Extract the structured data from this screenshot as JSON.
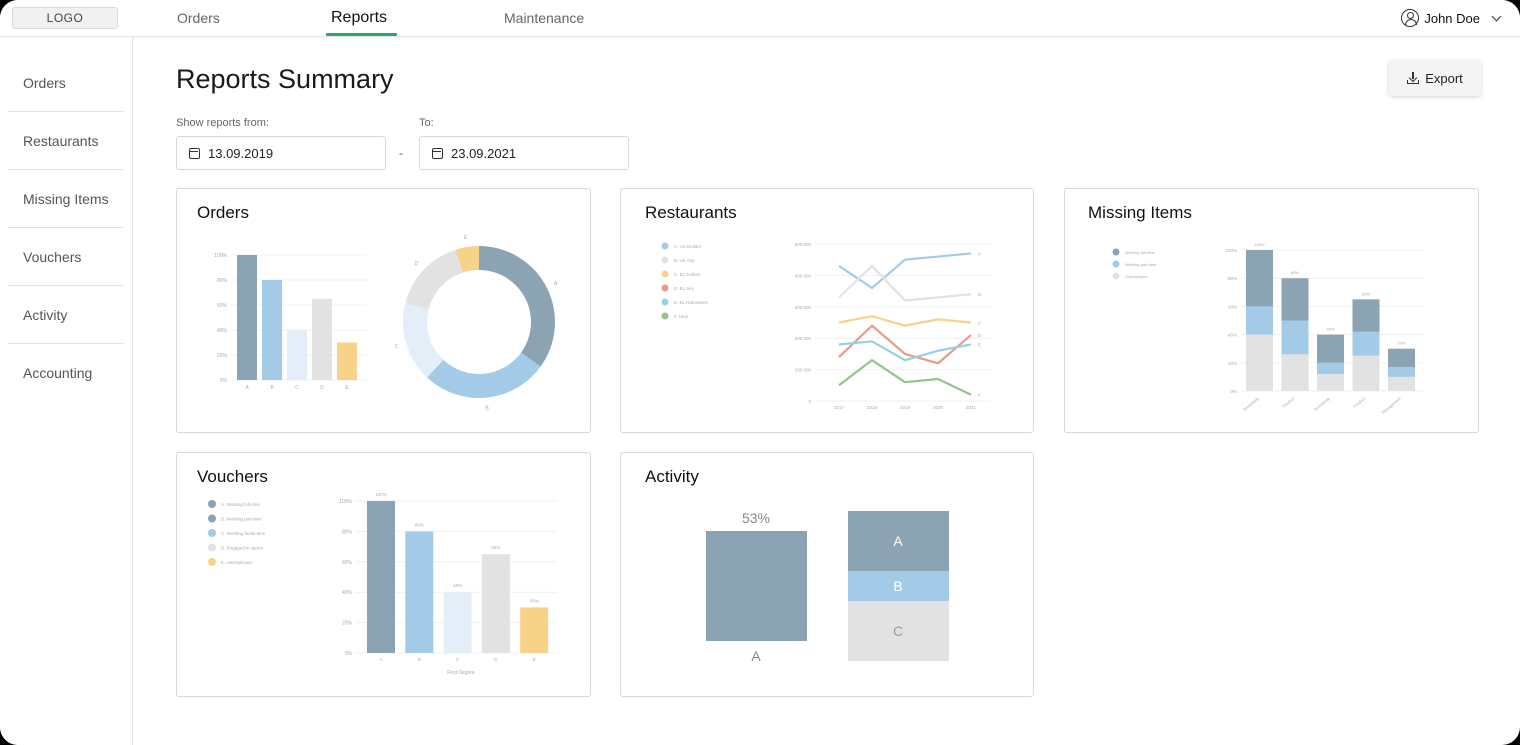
{
  "header": {
    "logo": "LOGO",
    "nav": [
      {
        "label": "Orders"
      },
      {
        "label": "Reports"
      },
      {
        "label": "Maintenance"
      }
    ],
    "user_name": "John Doe"
  },
  "sidebar": {
    "items": [
      {
        "label": "Orders"
      },
      {
        "label": "Restaurants"
      },
      {
        "label": "Missing Items"
      },
      {
        "label": "Vouchers"
      },
      {
        "label": "Activity"
      },
      {
        "label": "Accounting"
      }
    ]
  },
  "main": {
    "title": "Reports Summary",
    "export_label": "Export",
    "from_label": "Show reports from:",
    "from_value": "13.09.2019",
    "to_label": "To:",
    "to_value": "23.09.2021",
    "separator": "-"
  },
  "colors": {
    "accent": "#2aa56b",
    "slate": "#8ca3b3",
    "blue": "#a3cbe8",
    "pale_blue": "#e3eef8",
    "gray": "#e2e2e2",
    "yellow": "#f7d38a",
    "red": "#ea9a89",
    "cyan": "#94d2e3",
    "green": "#93c48a"
  },
  "cards": {
    "orders": {
      "title": "Orders"
    },
    "restaurants": {
      "title": "Restaurants"
    },
    "missing": {
      "title": "Missing Items"
    },
    "vouchers": {
      "title": "Vouchers"
    },
    "activity": {
      "title": "Activity"
    }
  },
  "chart_data": [
    {
      "id": "orders-bar",
      "type": "bar",
      "categories": [
        "A",
        "B",
        "C",
        "D",
        "E"
      ],
      "values": [
        100,
        80,
        40,
        65,
        30
      ],
      "ylim": [
        0,
        100
      ],
      "yticks": [
        "0%",
        "20%",
        "40%",
        "60%",
        "80%",
        "100%"
      ]
    },
    {
      "id": "orders-donut",
      "type": "pie",
      "labels": [
        "A",
        "B",
        "C",
        "D",
        "E"
      ],
      "values": [
        35,
        27,
        17,
        16,
        5
      ]
    },
    {
      "id": "restaurants-line",
      "type": "line",
      "x": [
        "2017",
        "2018",
        "2019",
        "2020",
        "2021"
      ],
      "ylim": [
        0,
        500000
      ],
      "yticks": [
        "0",
        "100 000",
        "200 000",
        "300 000",
        "400 000",
        "500 000"
      ],
      "legend": [
        "A. US Dollars",
        "B. UK Airy",
        "C. EL Dollars",
        "D. EL Airy",
        "E. EL Hamasters",
        "F. Hnoi"
      ],
      "series": [
        {
          "end_label": "A",
          "values": [
            430000,
            360000,
            450000,
            460000,
            470000
          ]
        },
        {
          "end_label": "B",
          "values": [
            330000,
            430000,
            320000,
            330000,
            340000
          ]
        },
        {
          "end_label": "C",
          "values": [
            250000,
            270000,
            240000,
            260000,
            250000
          ]
        },
        {
          "end_label": "D",
          "values": [
            140000,
            240000,
            150000,
            120000,
            210000
          ]
        },
        {
          "end_label": "E",
          "values": [
            180000,
            190000,
            130000,
            160000,
            180000
          ]
        },
        {
          "end_label": "F",
          "values": [
            50000,
            130000,
            60000,
            70000,
            20000
          ]
        }
      ]
    },
    {
      "id": "missing-stacked",
      "type": "bar",
      "stacked": true,
      "categories": [
        "Something",
        "Product",
        "Something",
        "Product",
        "Management"
      ],
      "ylim": [
        0,
        100
      ],
      "yticks": [
        "0%",
        "20%",
        "40%",
        "60%",
        "80%",
        "100%"
      ],
      "legend": [
        "Working full-time",
        "Working part-time",
        "Unemployed"
      ],
      "totals": [
        "100%",
        "80%",
        "40%",
        "65%",
        "30%"
      ],
      "series": [
        {
          "values": [
            40,
            30,
            20,
            23,
            13
          ]
        },
        {
          "values": [
            20,
            24,
            8,
            17,
            7
          ]
        },
        {
          "values": [
            40,
            26,
            12,
            25,
            10
          ]
        }
      ]
    },
    {
      "id": "vouchers-bar",
      "type": "bar",
      "categories": [
        "A",
        "B",
        "C",
        "D",
        "E"
      ],
      "values": [
        100,
        80,
        40,
        65,
        30
      ],
      "data_labels": [
        "100%",
        "80%",
        "40%",
        "65%",
        "30%"
      ],
      "ylim": [
        0,
        100
      ],
      "yticks": [
        "0%",
        "20%",
        "40%",
        "60%",
        "80%",
        "100%"
      ],
      "xlabel": "First Degree",
      "legend": [
        "A. Working full-time",
        "B. Working part-time",
        "C. Working faults-time",
        "D. Engaged in sports",
        "E. Unemployed"
      ]
    },
    {
      "id": "activity",
      "type": "bar",
      "percent_label": "53%",
      "single_label": "A",
      "stack_labels": [
        "A",
        "B",
        "C"
      ]
    }
  ]
}
